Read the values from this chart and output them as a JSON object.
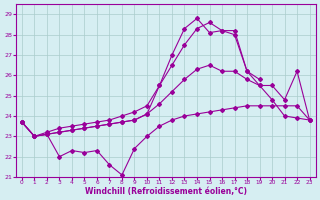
{
  "x": [
    0,
    1,
    2,
    3,
    4,
    5,
    6,
    7,
    8,
    9,
    10,
    11,
    12,
    13,
    14,
    15,
    16,
    17,
    18,
    19,
    20,
    21,
    22,
    23
  ],
  "line1": [
    23.7,
    23.0,
    23.1,
    22.0,
    22.3,
    22.2,
    22.3,
    21.6,
    21.1,
    22.4,
    23.0,
    23.5,
    23.8,
    24.0,
    24.1,
    24.2,
    24.3,
    24.4,
    24.5,
    24.5,
    24.5,
    24.5,
    24.5,
    23.8
  ],
  "line2": [
    23.7,
    23.0,
    23.1,
    23.2,
    23.3,
    23.4,
    23.5,
    23.6,
    23.7,
    23.8,
    24.1,
    24.6,
    25.2,
    25.8,
    26.3,
    26.5,
    26.2,
    26.2,
    25.8,
    25.5,
    25.5,
    24.8,
    26.2,
    23.8
  ],
  "line3": [
    23.7,
    23.0,
    23.2,
    23.4,
    23.5,
    23.6,
    23.7,
    23.8,
    24.0,
    24.2,
    24.5,
    25.5,
    26.5,
    27.5,
    28.3,
    28.6,
    28.2,
    28.2,
    26.2,
    25.8,
    null,
    null,
    null,
    null
  ],
  "line4": [
    23.7,
    23.0,
    23.1,
    23.2,
    23.3,
    23.4,
    23.5,
    23.6,
    23.7,
    23.8,
    24.1,
    25.5,
    27.0,
    28.3,
    28.8,
    28.1,
    28.2,
    28.0,
    26.2,
    25.5,
    24.8,
    24.0,
    23.9,
    23.8
  ],
  "color": "#990099",
  "bg_color": "#d6eef2",
  "grid_color": "#aacccc",
  "xlabel": "Windchill (Refroidissement éolien,°C)",
  "ylim": [
    21.0,
    29.5
  ],
  "xlim": [
    -0.5,
    23.5
  ],
  "yticks": [
    21,
    22,
    23,
    24,
    25,
    26,
    27,
    28,
    29
  ],
  "xticks": [
    0,
    1,
    2,
    3,
    4,
    5,
    6,
    7,
    8,
    9,
    10,
    11,
    12,
    13,
    14,
    15,
    16,
    17,
    18,
    19,
    20,
    21,
    22,
    23
  ]
}
